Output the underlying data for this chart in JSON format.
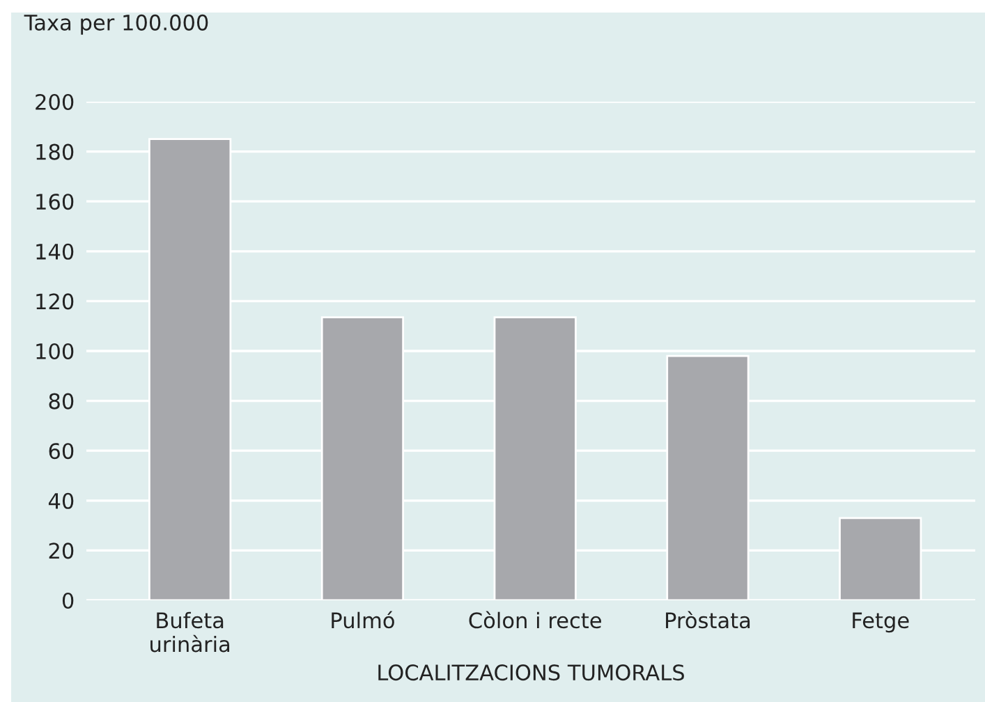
{
  "chart_data": {
    "type": "bar",
    "ylabel": "Taxa per 100.000",
    "xlabel": "LOCALITZACIONS TUMORALS",
    "categories": [
      "Bufeta\nurinària",
      "Pulmó",
      "Còlon i recte",
      "Pròstata",
      "Fetge"
    ],
    "values": [
      185,
      113.5,
      113.5,
      98,
      33
    ],
    "color": "#a7a8ac",
    "ylim": [
      0,
      200
    ],
    "yticks": [
      0,
      20,
      40,
      60,
      80,
      100,
      120,
      140,
      160,
      180,
      200
    ],
    "grid": "y"
  }
}
